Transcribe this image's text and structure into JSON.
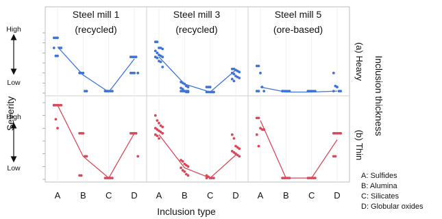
{
  "chart_data": {
    "type": "scatter",
    "panels": [
      "Steel mill 1\n(recycled)",
      "Steel mill 3\n(recycled)",
      "Steel mill 5\n(ore-based)"
    ],
    "rows": [
      {
        "label": "(a) Heavy",
        "color": "#3f73d6"
      },
      {
        "label": "(b) Thin",
        "color": "#d9485a"
      }
    ],
    "categories": [
      "A",
      "B",
      "C",
      "D"
    ],
    "ytick_labels": {
      "high": "High",
      "low": "Low"
    },
    "ylim": [
      0,
      3
    ],
    "xlabel": "Inclusion type",
    "ylabel": "Severity",
    "right_label": "Inclusion thickness",
    "legend": [
      "A: Sulfides",
      "B: Alumina",
      "C: Silicates",
      "D: Globular oxides"
    ],
    "lines": [
      [
        [
          2.3,
          0.9,
          0.05,
          1.7
        ],
        [
          1.8,
          0.45,
          0.05,
          1.15
        ],
        [
          0.3,
          0.05,
          0.05,
          0.1
        ]
      ],
      [
        [
          2.9,
          0.9,
          0.05,
          1.8
        ],
        [
          1.75,
          0.45,
          0.05,
          0.95
        ],
        [
          2.3,
          0.05,
          0.05,
          1.55
        ]
      ]
    ],
    "points": [
      [
        [
          [
            2.75,
            2.75,
            2.75,
            2.25,
            2.25,
            2.25,
            1.85,
            1.85
          ],
          [
            1.0,
            1.0,
            1.0,
            0.1,
            0.1
          ],
          [
            0.1,
            0.1,
            0.1,
            0.1,
            0.1,
            0.1,
            0.1
          ],
          [
            1.8,
            1.8,
            1.8,
            1.8,
            1.0,
            1.0,
            1.0,
            1.0
          ]
        ],
        [
          [
            2.55,
            2.55,
            2.25,
            2.25,
            2.2,
            2.1,
            2.0,
            1.9,
            1.85,
            1.8,
            1.8,
            1.75,
            1.6,
            1.55,
            1.3
          ],
          [
            0.55,
            0.5,
            0.45,
            0.35,
            0.3,
            0.25,
            0.2,
            0.1,
            0.1,
            0.1,
            0.1,
            0.1,
            0.1,
            0.05,
            0.05
          ],
          [
            0.3,
            0.3,
            0.3,
            0.05,
            0.05,
            0.05,
            0.05,
            0.05,
            0.05,
            0.05
          ],
          [
            1.2,
            1.2,
            1.15,
            1.1,
            1.05,
            1.0,
            0.95,
            0.85,
            0.8,
            0.75,
            0.7,
            0.6
          ]
        ],
        [
          [
            1.35,
            1.35,
            1.0,
            0.3,
            0.1,
            0.1,
            0.1
          ],
          [
            0.1,
            0.1,
            0.1,
            0.1,
            0.1,
            0.1
          ],
          [
            0.1,
            0.1,
            0.1,
            0.1,
            0.1,
            0.1
          ],
          [
            1.0,
            0.35,
            0.3,
            0.1,
            0.1,
            0.1
          ]
        ]
      ],
      [
        [
          [
            2.9,
            2.9,
            2.9,
            2.9,
            2.9,
            2.9,
            2.35,
            2.0
          ],
          [
            1.8,
            1.8,
            1.8,
            0.9,
            0.9,
            0.15,
            0.15
          ],
          [
            0.05,
            0.05,
            0.05,
            0.05,
            0.05
          ],
          [
            1.8,
            1.8,
            1.8,
            1.8,
            0.9
          ]
        ],
        [
          [
            2.5,
            2.3,
            2.2,
            2.1,
            2.05,
            2.0,
            1.95,
            1.9,
            1.85,
            1.8,
            1.75,
            1.7,
            1.6
          ],
          [
            0.75,
            0.7,
            0.6,
            0.55,
            0.5,
            0.45,
            0.35,
            0.3,
            0.2,
            0.15
          ],
          [
            0.15,
            0.1,
            0.05,
            0.05,
            0.05,
            0.05
          ],
          [
            1.75,
            1.6,
            1.3,
            1.25,
            1.2,
            1.1,
            1.05,
            1.0,
            0.95,
            0.9
          ]
        ],
        [
          [
            2.4,
            2.4,
            2.0,
            1.95,
            1.95,
            1.75,
            1.3
          ],
          [
            0.05,
            0.05,
            0.05,
            0.05,
            0.05
          ],
          [
            0.05,
            0.05,
            0.05,
            0.05,
            0.05
          ],
          [
            1.8,
            1.8,
            1.8,
            1.8,
            1.8,
            0.9,
            0.9
          ]
        ]
      ]
    ]
  }
}
